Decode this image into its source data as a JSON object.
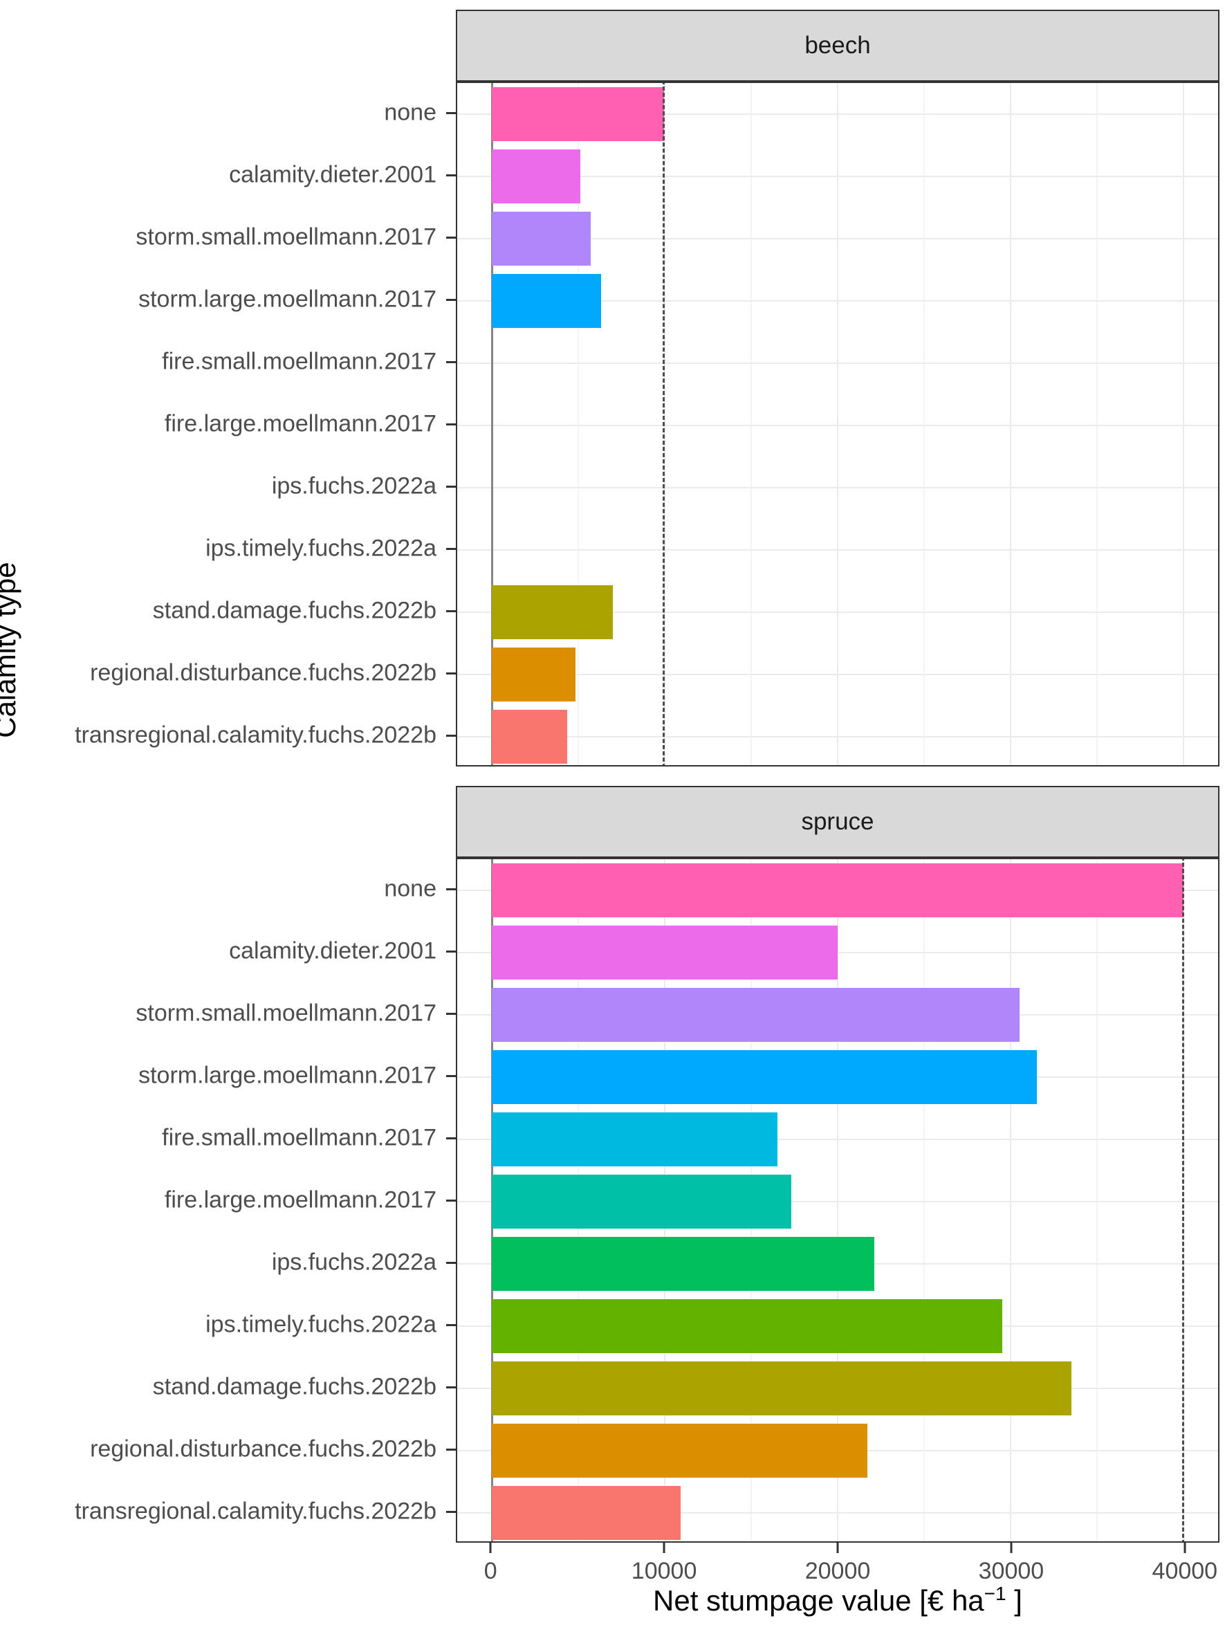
{
  "chart_data": {
    "type": "bar",
    "orientation": "horizontal",
    "title": "",
    "x_axis": {
      "title_pre": "Net stumpage value [€ ha",
      "title_sup": "−1",
      "title_post": " ]",
      "ticks": [
        0,
        10000,
        20000,
        30000,
        40000
      ],
      "tick_labels": [
        "0",
        "10000",
        "20000",
        "30000",
        "40000"
      ],
      "minor_ticks": [
        5000,
        15000,
        25000,
        35000
      ],
      "range": [
        -2000,
        42000
      ],
      "grid": true
    },
    "y_axis": {
      "label": "Calamity type"
    },
    "categories": [
      "none",
      "calamity.dieter.2001",
      "storm.small.moellmann.2017",
      "storm.large.moellmann.2017",
      "fire.small.moellmann.2017",
      "fire.large.moellmann.2017",
      "ips.fuchs.2022a",
      "ips.timely.fuchs.2022a",
      "stand.damage.fuchs.2022b",
      "regional.disturbance.fuchs.2022b",
      "transregional.calamity.fuchs.2022b"
    ],
    "colors": [
      "#FF61B0",
      "#EC6BEB",
      "#B286FB",
      "#00A8FE",
      "#00B9E0",
      "#00C1A8",
      "#00BF5C",
      "#64B200",
      "#ABA300",
      "#DB8E00",
      "#F8766D"
    ],
    "facets": [
      {
        "label": "beech",
        "values": [
          9950,
          5100,
          5700,
          6300,
          0,
          0,
          0,
          0,
          7000,
          4850,
          4350
        ],
        "reference_line": 9950,
        "zero_line": 0
      },
      {
        "label": "spruce",
        "values": [
          40000,
          20000,
          30500,
          31500,
          16500,
          17300,
          22100,
          29500,
          33500,
          21700,
          10900
        ],
        "reference_line": 40000,
        "zero_line": 0
      }
    ],
    "style": {
      "strip_background": "#d9d9d9",
      "panel_border": "#333333",
      "major_grid": "#ebebeb",
      "minor_grid": "#f4f4f4",
      "zero_line_color": "#858585",
      "reference_line_color": "#4d4d4d",
      "axis_text_color": "#4d4d4d"
    }
  }
}
